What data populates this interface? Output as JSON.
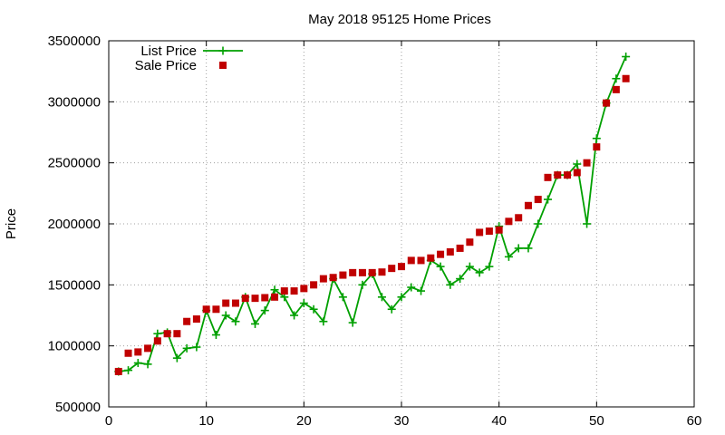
{
  "chart_data": {
    "type": "line",
    "title": "May 2018 95125 Home Prices",
    "xlabel": "",
    "ylabel": "Price",
    "xlim": [
      0,
      60
    ],
    "ylim": [
      500000,
      3500000
    ],
    "x_ticks": [
      0,
      10,
      20,
      30,
      40,
      50,
      60
    ],
    "y_ticks": [
      500000,
      1000000,
      1500000,
      2000000,
      2500000,
      3000000,
      3500000
    ],
    "grid": true,
    "legend_position": "top-left",
    "series": [
      {
        "name": "List Price",
        "style": "linespoints",
        "marker": "plus",
        "color": "#00a000",
        "x": [
          1,
          2,
          3,
          4,
          5,
          6,
          7,
          8,
          9,
          10,
          11,
          12,
          13,
          14,
          15,
          16,
          17,
          18,
          19,
          20,
          21,
          22,
          23,
          24,
          25,
          26,
          27,
          28,
          29,
          30,
          31,
          32,
          33,
          34,
          35,
          36,
          37,
          38,
          39,
          40,
          41,
          42,
          43,
          44,
          45,
          46,
          47,
          48,
          49,
          50,
          51,
          52,
          53
        ],
        "values": [
          790000,
          800000,
          860000,
          850000,
          1100000,
          1110000,
          900000,
          980000,
          990000,
          1290000,
          1090000,
          1250000,
          1200000,
          1400000,
          1180000,
          1290000,
          1460000,
          1400000,
          1250000,
          1350000,
          1300000,
          1200000,
          1550000,
          1400000,
          1190000,
          1500000,
          1590000,
          1400000,
          1300000,
          1400000,
          1480000,
          1450000,
          1700000,
          1650000,
          1500000,
          1550000,
          1650000,
          1600000,
          1650000,
          1980000,
          1730000,
          1800000,
          1800000,
          2000000,
          2200000,
          2400000,
          2400000,
          2490000,
          2000000,
          2700000,
          2990000,
          3190000,
          3370000
        ]
      },
      {
        "name": "Sale Price",
        "style": "points",
        "marker": "square",
        "color": "#c00000",
        "x": [
          1,
          2,
          3,
          4,
          5,
          6,
          7,
          8,
          9,
          10,
          11,
          12,
          13,
          14,
          15,
          16,
          17,
          18,
          19,
          20,
          21,
          22,
          23,
          24,
          25,
          26,
          27,
          28,
          29,
          30,
          31,
          32,
          33,
          34,
          35,
          36,
          37,
          38,
          39,
          40,
          41,
          42,
          43,
          44,
          45,
          46,
          47,
          48,
          49,
          50,
          51,
          52,
          53
        ],
        "values": [
          790000,
          940000,
          950000,
          980000,
          1040000,
          1100000,
          1100000,
          1200000,
          1220000,
          1300000,
          1300000,
          1350000,
          1350000,
          1390000,
          1390000,
          1395000,
          1400000,
          1450000,
          1450000,
          1470000,
          1500000,
          1550000,
          1560000,
          1580000,
          1600000,
          1600000,
          1600000,
          1605000,
          1635000,
          1650000,
          1700000,
          1700000,
          1720000,
          1750000,
          1770000,
          1800000,
          1850000,
          1930000,
          1940000,
          1950000,
          2020000,
          2050000,
          2150000,
          2200000,
          2380000,
          2400000,
          2400000,
          2420000,
          2500000,
          2630000,
          2990000,
          3100000,
          3190000
        ]
      }
    ]
  }
}
